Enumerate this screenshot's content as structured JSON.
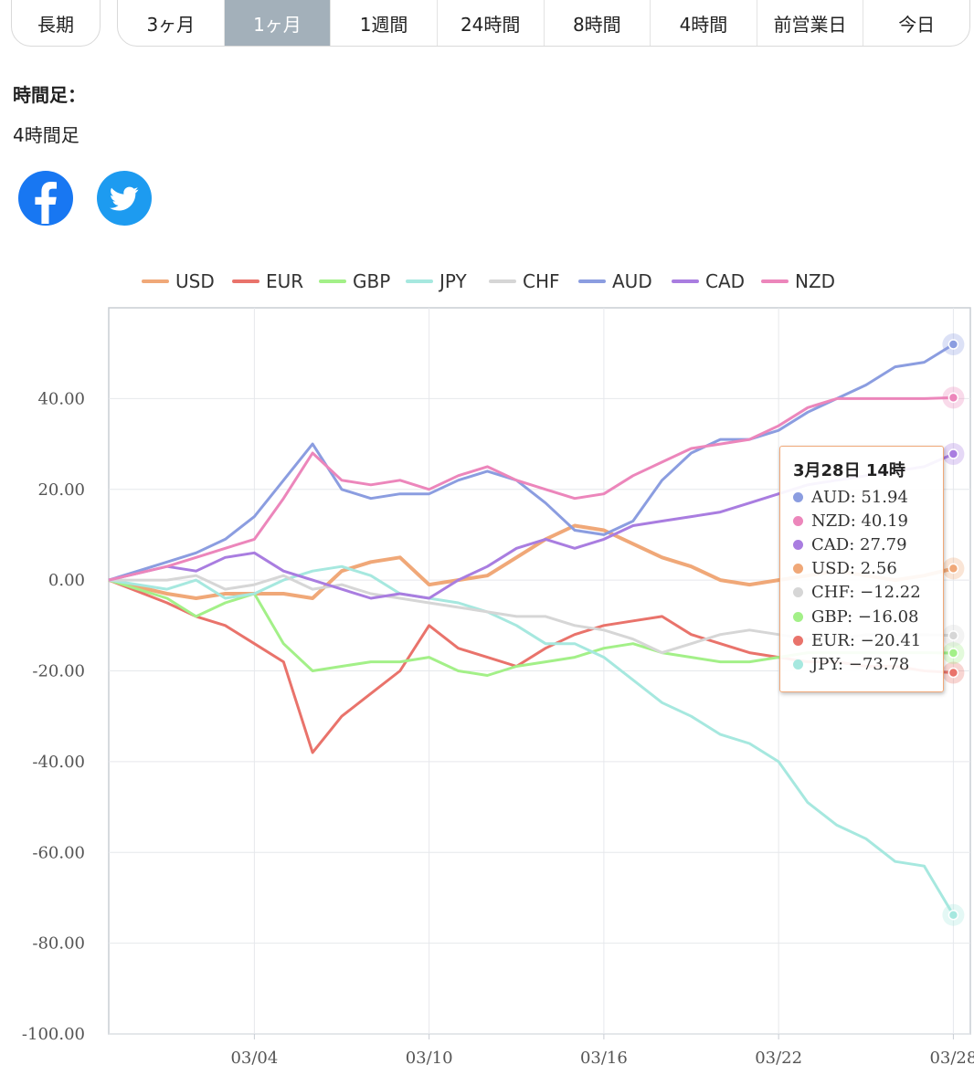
{
  "tabs": {
    "first": "長期",
    "items": [
      "3ヶ月",
      "1ヶ月",
      "1週間",
      "24時間",
      "8時間",
      "4時間",
      "前営業日",
      "今日"
    ],
    "active_index": 1
  },
  "timeframe": {
    "label": "時間足：",
    "value": "4時間足"
  },
  "social": {
    "facebook_icon": "facebook-icon",
    "twitter_icon": "twitter-icon"
  },
  "colors": {
    "USD": "#f0a878",
    "EUR": "#e9736b",
    "GBP": "#a3f088",
    "JPY": "#a6e8df",
    "CHF": "#d6d6d6",
    "AUD": "#8b9de0",
    "CAD": "#a97de0",
    "NZD": "#ec86bb"
  },
  "chart_data": {
    "type": "line",
    "title": "",
    "xlabel": "",
    "ylabel": "",
    "x_ticks": [
      "03/04",
      "03/10",
      "03/16",
      "03/22",
      "03/28"
    ],
    "y_ticks": [
      "40.00",
      "20.00",
      "0.00",
      "-20.00",
      "-40.00",
      "-60.00",
      "-80.00",
      "-100.00"
    ],
    "ylim": [
      -100,
      60
    ],
    "xlim": [
      "02/28",
      "03/28"
    ],
    "grid": true,
    "legend_position": "top",
    "series": [
      {
        "name": "USD",
        "points": [
          [
            "02/28",
            0
          ],
          [
            "03/01",
            -3
          ],
          [
            "03/02",
            -4
          ],
          [
            "03/03",
            -3
          ],
          [
            "03/04",
            -3
          ],
          [
            "03/05",
            -3
          ],
          [
            "03/06",
            -4
          ],
          [
            "03/07",
            2
          ],
          [
            "03/08",
            4
          ],
          [
            "03/09",
            5
          ],
          [
            "03/10",
            -1
          ],
          [
            "03/11",
            0
          ],
          [
            "03/12",
            1
          ],
          [
            "03/13",
            5
          ],
          [
            "03/14",
            9
          ],
          [
            "03/15",
            12
          ],
          [
            "03/16",
            11
          ],
          [
            "03/17",
            8
          ],
          [
            "03/18",
            5
          ],
          [
            "03/19",
            3
          ],
          [
            "03/20",
            0
          ],
          [
            "03/21",
            -1
          ],
          [
            "03/22",
            0
          ],
          [
            "03/23",
            1
          ],
          [
            "03/24",
            2
          ],
          [
            "03/25",
            1
          ],
          [
            "03/26",
            0
          ],
          [
            "03/27",
            1
          ],
          [
            "03/28",
            2.56
          ]
        ]
      },
      {
        "name": "EUR",
        "points": [
          [
            "02/28",
            0
          ],
          [
            "03/01",
            -5
          ],
          [
            "03/02",
            -8
          ],
          [
            "03/03",
            -10
          ],
          [
            "03/04",
            -14
          ],
          [
            "03/05",
            -18
          ],
          [
            "03/06",
            -38
          ],
          [
            "03/07",
            -30
          ],
          [
            "03/08",
            -25
          ],
          [
            "03/09",
            -20
          ],
          [
            "03/10",
            -10
          ],
          [
            "03/11",
            -15
          ],
          [
            "03/12",
            -17
          ],
          [
            "03/13",
            -19
          ],
          [
            "03/14",
            -15
          ],
          [
            "03/15",
            -12
          ],
          [
            "03/16",
            -10
          ],
          [
            "03/17",
            -9
          ],
          [
            "03/18",
            -8
          ],
          [
            "03/19",
            -12
          ],
          [
            "03/20",
            -14
          ],
          [
            "03/21",
            -16
          ],
          [
            "03/22",
            -17
          ],
          [
            "03/23",
            -18
          ],
          [
            "03/24",
            -18
          ],
          [
            "03/25",
            -19
          ],
          [
            "03/26",
            -19
          ],
          [
            "03/27",
            -20
          ],
          [
            "03/28",
            -20.41
          ]
        ]
      },
      {
        "name": "GBP",
        "points": [
          [
            "02/28",
            0
          ],
          [
            "03/01",
            -4
          ],
          [
            "03/02",
            -8
          ],
          [
            "03/03",
            -5
          ],
          [
            "03/04",
            -3
          ],
          [
            "03/05",
            -14
          ],
          [
            "03/06",
            -20
          ],
          [
            "03/07",
            -19
          ],
          [
            "03/08",
            -18
          ],
          [
            "03/09",
            -18
          ],
          [
            "03/10",
            -17
          ],
          [
            "03/11",
            -20
          ],
          [
            "03/12",
            -21
          ],
          [
            "03/13",
            -19
          ],
          [
            "03/14",
            -18
          ],
          [
            "03/15",
            -17
          ],
          [
            "03/16",
            -15
          ],
          [
            "03/17",
            -14
          ],
          [
            "03/18",
            -16
          ],
          [
            "03/19",
            -17
          ],
          [
            "03/20",
            -18
          ],
          [
            "03/21",
            -18
          ],
          [
            "03/22",
            -17
          ],
          [
            "03/23",
            -16
          ],
          [
            "03/24",
            -16
          ],
          [
            "03/25",
            -16
          ],
          [
            "03/26",
            -16
          ],
          [
            "03/27",
            -16
          ],
          [
            "03/28",
            -16.08
          ]
        ]
      },
      {
        "name": "JPY",
        "points": [
          [
            "02/28",
            0
          ],
          [
            "03/01",
            -2
          ],
          [
            "03/02",
            0
          ],
          [
            "03/03",
            -4
          ],
          [
            "03/04",
            -3
          ],
          [
            "03/05",
            0
          ],
          [
            "03/06",
            2
          ],
          [
            "03/07",
            3
          ],
          [
            "03/08",
            1
          ],
          [
            "03/09",
            -3
          ],
          [
            "03/10",
            -4
          ],
          [
            "03/11",
            -5
          ],
          [
            "03/12",
            -7
          ],
          [
            "03/13",
            -10
          ],
          [
            "03/14",
            -14
          ],
          [
            "03/15",
            -14
          ],
          [
            "03/16",
            -17
          ],
          [
            "03/17",
            -22
          ],
          [
            "03/18",
            -27
          ],
          [
            "03/19",
            -30
          ],
          [
            "03/20",
            -34
          ],
          [
            "03/21",
            -36
          ],
          [
            "03/22",
            -40
          ],
          [
            "03/23",
            -49
          ],
          [
            "03/24",
            -54
          ],
          [
            "03/25",
            -57
          ],
          [
            "03/26",
            -62
          ],
          [
            "03/27",
            -63
          ],
          [
            "03/28",
            -73.78
          ]
        ]
      },
      {
        "name": "CHF",
        "points": [
          [
            "02/28",
            0
          ],
          [
            "03/01",
            0
          ],
          [
            "03/02",
            1
          ],
          [
            "03/03",
            -2
          ],
          [
            "03/04",
            -1
          ],
          [
            "03/05",
            1
          ],
          [
            "03/06",
            -2
          ],
          [
            "03/07",
            -1
          ],
          [
            "03/08",
            -3
          ],
          [
            "03/09",
            -4
          ],
          [
            "03/10",
            -5
          ],
          [
            "03/11",
            -6
          ],
          [
            "03/12",
            -7
          ],
          [
            "03/13",
            -8
          ],
          [
            "03/14",
            -8
          ],
          [
            "03/15",
            -10
          ],
          [
            "03/16",
            -11
          ],
          [
            "03/17",
            -13
          ],
          [
            "03/18",
            -16
          ],
          [
            "03/19",
            -14
          ],
          [
            "03/20",
            -12
          ],
          [
            "03/21",
            -11
          ],
          [
            "03/22",
            -12
          ],
          [
            "03/23",
            -13
          ],
          [
            "03/24",
            -13
          ],
          [
            "03/25",
            -12
          ],
          [
            "03/26",
            -12
          ],
          [
            "03/27",
            -12
          ],
          [
            "03/28",
            -12.22
          ]
        ]
      },
      {
        "name": "AUD",
        "points": [
          [
            "02/28",
            0
          ],
          [
            "03/01",
            4
          ],
          [
            "03/02",
            6
          ],
          [
            "03/03",
            9
          ],
          [
            "03/04",
            14
          ],
          [
            "03/05",
            22
          ],
          [
            "03/06",
            30
          ],
          [
            "03/07",
            20
          ],
          [
            "03/08",
            18
          ],
          [
            "03/09",
            19
          ],
          [
            "03/10",
            19
          ],
          [
            "03/11",
            22
          ],
          [
            "03/12",
            24
          ],
          [
            "03/13",
            22
          ],
          [
            "03/14",
            17
          ],
          [
            "03/15",
            11
          ],
          [
            "03/16",
            10
          ],
          [
            "03/17",
            13
          ],
          [
            "03/18",
            22
          ],
          [
            "03/19",
            28
          ],
          [
            "03/20",
            31
          ],
          [
            "03/21",
            31
          ],
          [
            "03/22",
            33
          ],
          [
            "03/23",
            37
          ],
          [
            "03/24",
            40
          ],
          [
            "03/25",
            43
          ],
          [
            "03/26",
            47
          ],
          [
            "03/27",
            48
          ],
          [
            "03/28",
            51.94
          ]
        ]
      },
      {
        "name": "CAD",
        "points": [
          [
            "02/28",
            0
          ],
          [
            "03/01",
            3
          ],
          [
            "03/02",
            2
          ],
          [
            "03/03",
            5
          ],
          [
            "03/04",
            6
          ],
          [
            "03/05",
            2
          ],
          [
            "03/06",
            0
          ],
          [
            "03/07",
            -2
          ],
          [
            "03/08",
            -4
          ],
          [
            "03/09",
            -3
          ],
          [
            "03/10",
            -4
          ],
          [
            "03/11",
            0
          ],
          [
            "03/12",
            3
          ],
          [
            "03/13",
            7
          ],
          [
            "03/14",
            9
          ],
          [
            "03/15",
            7
          ],
          [
            "03/16",
            9
          ],
          [
            "03/17",
            12
          ],
          [
            "03/18",
            13
          ],
          [
            "03/19",
            14
          ],
          [
            "03/20",
            15
          ],
          [
            "03/21",
            17
          ],
          [
            "03/22",
            19
          ],
          [
            "03/23",
            21
          ],
          [
            "03/24",
            22
          ],
          [
            "03/25",
            23
          ],
          [
            "03/26",
            24
          ],
          [
            "03/27",
            25
          ],
          [
            "03/28",
            27.79
          ]
        ]
      },
      {
        "name": "NZD",
        "points": [
          [
            "02/28",
            0
          ],
          [
            "03/01",
            3
          ],
          [
            "03/02",
            5
          ],
          [
            "03/03",
            7
          ],
          [
            "03/04",
            9
          ],
          [
            "03/05",
            18
          ],
          [
            "03/06",
            28
          ],
          [
            "03/07",
            22
          ],
          [
            "03/08",
            21
          ],
          [
            "03/09",
            22
          ],
          [
            "03/10",
            20
          ],
          [
            "03/11",
            23
          ],
          [
            "03/12",
            25
          ],
          [
            "03/13",
            22
          ],
          [
            "03/14",
            20
          ],
          [
            "03/15",
            18
          ],
          [
            "03/16",
            19
          ],
          [
            "03/17",
            23
          ],
          [
            "03/18",
            26
          ],
          [
            "03/19",
            29
          ],
          [
            "03/20",
            30
          ],
          [
            "03/21",
            31
          ],
          [
            "03/22",
            34
          ],
          [
            "03/23",
            38
          ],
          [
            "03/24",
            40
          ],
          [
            "03/25",
            40
          ],
          [
            "03/26",
            40
          ],
          [
            "03/27",
            40
          ],
          [
            "03/28",
            40.19
          ]
        ]
      }
    ]
  },
  "tooltip": {
    "title": "3月28日 14時",
    "rows": [
      {
        "name": "AUD",
        "text": "AUD: 51.94"
      },
      {
        "name": "NZD",
        "text": "NZD: 40.19"
      },
      {
        "name": "CAD",
        "text": "CAD: 27.79"
      },
      {
        "name": "USD",
        "text": "USD: 2.56"
      },
      {
        "name": "CHF",
        "text": "CHF: −12.22"
      },
      {
        "name": "GBP",
        "text": "GBP: −16.08"
      },
      {
        "name": "EUR",
        "text": "EUR: −20.41"
      },
      {
        "name": "JPY",
        "text": "JPY: −73.78"
      }
    ]
  }
}
